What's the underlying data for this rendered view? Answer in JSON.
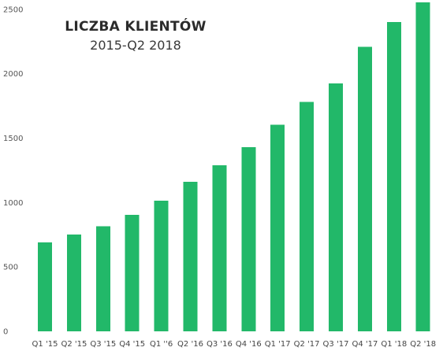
{
  "chart_data": {
    "type": "bar",
    "title": "LICZBA KLIENTÓW",
    "subtitle": "2015-Q2 2018",
    "xlabel": "",
    "ylabel": "",
    "categories": [
      "Q1 '15",
      "Q2 '15",
      "Q3 '15",
      "Q4 '15",
      "Q1 ''6",
      "Q2 '16",
      "Q3 '16",
      "Q4 '16",
      "Q1 '17",
      "Q2 '17",
      "Q3 '17",
      "Q4 '17",
      "Q1 '18",
      "Q2 '18"
    ],
    "values": [
      690,
      750,
      815,
      905,
      1015,
      1160,
      1290,
      1430,
      1605,
      1780,
      1925,
      2210,
      2400,
      2555
    ],
    "ylim": [
      0,
      2560
    ],
    "yticks": [
      0,
      500,
      1000,
      1500,
      2000,
      2500
    ],
    "grid": false,
    "legend": "none",
    "bar_color": "#22b869"
  }
}
